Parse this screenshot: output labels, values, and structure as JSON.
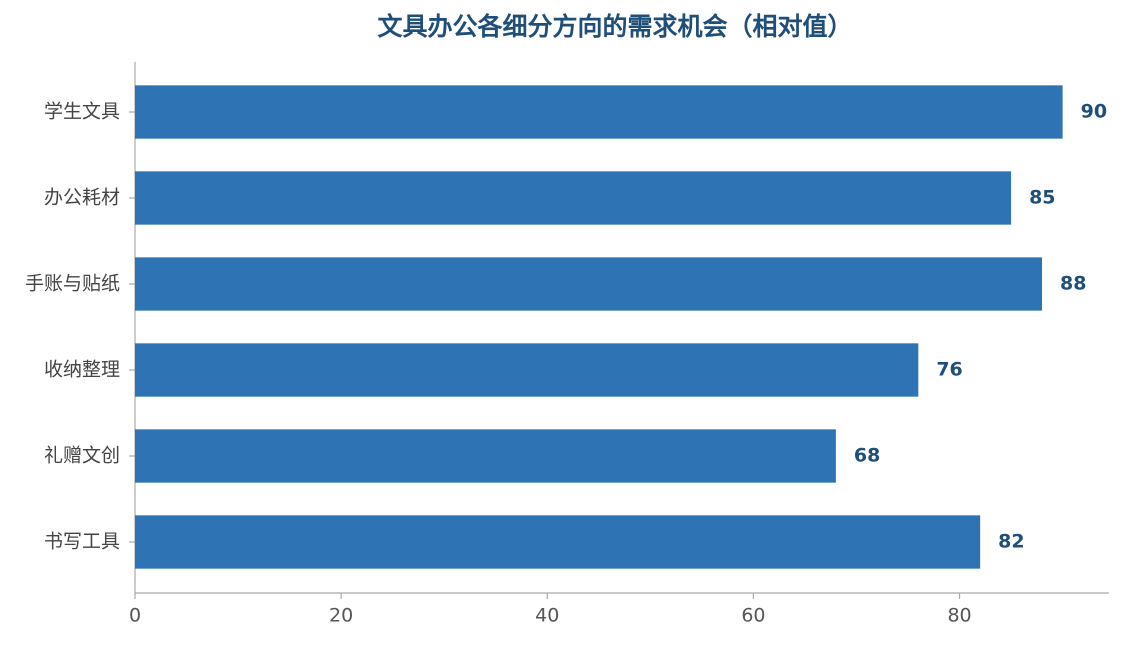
{
  "chart_data": {
    "type": "barh",
    "title": "文具办公各细分方向的需求机会（相对值）",
    "categories": [
      "学生文具",
      "办公耗材",
      "手账与贴纸",
      "收纳整理",
      "礼赠文创",
      "书写工具"
    ],
    "values": [
      90,
      85,
      88,
      76,
      68,
      82
    ],
    "color": "#2e74b5",
    "xlim": [
      0,
      94.5
    ],
    "xticks": [
      0,
      20,
      40,
      60,
      80
    ],
    "grid": false
  }
}
